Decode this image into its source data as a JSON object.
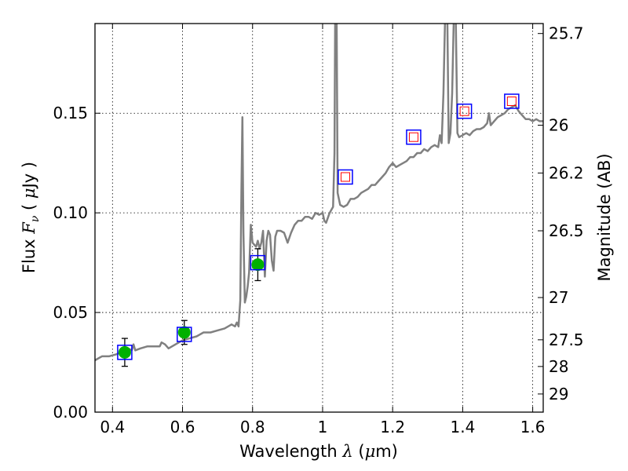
{
  "chart_data": {
    "type": "line",
    "title": "",
    "xlabel": "Wavelength  λ (μm)",
    "xlabel_parts": {
      "text": "Wavelength",
      "symbol": "λ",
      "unit_open": " (",
      "unit_mu": "μ",
      "unit_rest": "m)"
    },
    "ylabel": "Flux  F_ν  ( μJy )",
    "ylabel_parts": {
      "text": "Flux",
      "symbol": "F",
      "sub": "ν",
      "unit_open": "( ",
      "unit_mu": "μ",
      "unit_rest": "Jy )"
    },
    "y2label": "Magnitude (AB)",
    "xlim": [
      0.35,
      1.63
    ],
    "ylim": [
      0.0,
      0.195
    ],
    "grid": true,
    "x_ticks": [
      {
        "value": 0.4,
        "label": "0.4"
      },
      {
        "value": 0.6,
        "label": "0.6"
      },
      {
        "value": 0.8,
        "label": "0.8"
      },
      {
        "value": 1.0,
        "label": "1"
      },
      {
        "value": 1.2,
        "label": "1.2"
      },
      {
        "value": 1.4,
        "label": "1.4"
      },
      {
        "value": 1.6,
        "label": "1.6"
      }
    ],
    "y_ticks": [
      {
        "value": 0.0,
        "label": "0.00"
      },
      {
        "value": 0.05,
        "label": "0.05"
      },
      {
        "value": 0.1,
        "label": "0.10"
      },
      {
        "value": 0.15,
        "label": "0.15"
      }
    ],
    "mag_ticks": [
      {
        "label": "25.7",
        "flux": 0.19
      },
      {
        "label": "26",
        "flux": 0.144
      },
      {
        "label": "26.2",
        "flux": 0.12
      },
      {
        "label": "26.5",
        "flux": 0.091
      },
      {
        "label": "27",
        "flux": 0.0575
      },
      {
        "label": "27.5",
        "flux": 0.0363
      },
      {
        "label": "28",
        "flux": 0.0229
      },
      {
        "label": "29",
        "flux": 0.0091
      }
    ],
    "series": [
      {
        "kind": "model_spectrum",
        "color": "#808080",
        "points": [
          [
            0.35,
            0.026
          ],
          [
            0.37,
            0.028
          ],
          [
            0.39,
            0.028
          ],
          [
            0.41,
            0.029
          ],
          [
            0.425,
            0.03
          ],
          [
            0.435,
            0.031
          ],
          [
            0.445,
            0.032
          ],
          [
            0.455,
            0.031
          ],
          [
            0.46,
            0.034
          ],
          [
            0.465,
            0.031
          ],
          [
            0.48,
            0.032
          ],
          [
            0.5,
            0.033
          ],
          [
            0.52,
            0.033
          ],
          [
            0.535,
            0.033
          ],
          [
            0.54,
            0.035
          ],
          [
            0.55,
            0.034
          ],
          [
            0.56,
            0.032
          ],
          [
            0.58,
            0.034
          ],
          [
            0.6,
            0.036
          ],
          [
            0.62,
            0.037
          ],
          [
            0.64,
            0.038
          ],
          [
            0.66,
            0.04
          ],
          [
            0.68,
            0.04
          ],
          [
            0.7,
            0.041
          ],
          [
            0.72,
            0.042
          ],
          [
            0.74,
            0.044
          ],
          [
            0.75,
            0.043
          ],
          [
            0.755,
            0.045
          ],
          [
            0.76,
            0.043
          ],
          [
            0.765,
            0.056
          ],
          [
            0.768,
            0.11
          ],
          [
            0.771,
            0.148
          ],
          [
            0.774,
            0.09
          ],
          [
            0.778,
            0.055
          ],
          [
            0.782,
            0.058
          ],
          [
            0.786,
            0.063
          ],
          [
            0.79,
            0.07
          ],
          [
            0.795,
            0.094
          ],
          [
            0.8,
            0.085
          ],
          [
            0.81,
            0.083
          ],
          [
            0.815,
            0.086
          ],
          [
            0.82,
            0.082
          ],
          [
            0.825,
            0.085
          ],
          [
            0.83,
            0.091
          ],
          [
            0.835,
            0.068
          ],
          [
            0.84,
            0.086
          ],
          [
            0.845,
            0.091
          ],
          [
            0.85,
            0.089
          ],
          [
            0.855,
            0.076
          ],
          [
            0.86,
            0.071
          ],
          [
            0.865,
            0.088
          ],
          [
            0.87,
            0.091
          ],
          [
            0.88,
            0.091
          ],
          [
            0.89,
            0.09
          ],
          [
            0.9,
            0.085
          ],
          [
            0.91,
            0.09
          ],
          [
            0.92,
            0.094
          ],
          [
            0.93,
            0.096
          ],
          [
            0.94,
            0.096
          ],
          [
            0.95,
            0.098
          ],
          [
            0.96,
            0.098
          ],
          [
            0.97,
            0.097
          ],
          [
            0.98,
            0.1
          ],
          [
            0.99,
            0.099
          ],
          [
            1.0,
            0.1
          ],
          [
            1.005,
            0.096
          ],
          [
            1.01,
            0.095
          ],
          [
            1.02,
            0.1
          ],
          [
            1.03,
            0.103
          ],
          [
            1.034,
            0.13
          ],
          [
            1.036,
            0.2
          ],
          [
            1.04,
            0.2
          ],
          [
            1.043,
            0.11
          ],
          [
            1.05,
            0.104
          ],
          [
            1.06,
            0.103
          ],
          [
            1.07,
            0.104
          ],
          [
            1.08,
            0.107
          ],
          [
            1.09,
            0.107
          ],
          [
            1.1,
            0.108
          ],
          [
            1.11,
            0.11
          ],
          [
            1.12,
            0.111
          ],
          [
            1.13,
            0.112
          ],
          [
            1.14,
            0.114
          ],
          [
            1.15,
            0.114
          ],
          [
            1.16,
            0.116
          ],
          [
            1.17,
            0.118
          ],
          [
            1.18,
            0.12
          ],
          [
            1.19,
            0.123
          ],
          [
            1.2,
            0.125
          ],
          [
            1.21,
            0.123
          ],
          [
            1.22,
            0.124
          ],
          [
            1.23,
            0.125
          ],
          [
            1.24,
            0.126
          ],
          [
            1.25,
            0.128
          ],
          [
            1.26,
            0.128
          ],
          [
            1.27,
            0.13
          ],
          [
            1.28,
            0.13
          ],
          [
            1.29,
            0.132
          ],
          [
            1.3,
            0.131
          ],
          [
            1.31,
            0.133
          ],
          [
            1.32,
            0.134
          ],
          [
            1.33,
            0.133
          ],
          [
            1.335,
            0.139
          ],
          [
            1.34,
            0.135
          ],
          [
            1.345,
            0.16
          ],
          [
            1.35,
            0.2
          ],
          [
            1.356,
            0.2
          ],
          [
            1.36,
            0.135
          ],
          [
            1.365,
            0.14
          ],
          [
            1.37,
            0.16
          ],
          [
            1.375,
            0.2
          ],
          [
            1.38,
            0.2
          ],
          [
            1.385,
            0.14
          ],
          [
            1.39,
            0.138
          ],
          [
            1.4,
            0.139
          ],
          [
            1.41,
            0.14
          ],
          [
            1.42,
            0.139
          ],
          [
            1.43,
            0.141
          ],
          [
            1.44,
            0.142
          ],
          [
            1.45,
            0.142
          ],
          [
            1.46,
            0.143
          ],
          [
            1.47,
            0.145
          ],
          [
            1.475,
            0.15
          ],
          [
            1.48,
            0.144
          ],
          [
            1.49,
            0.146
          ],
          [
            1.5,
            0.148
          ],
          [
            1.51,
            0.149
          ],
          [
            1.52,
            0.15
          ],
          [
            1.53,
            0.152
          ],
          [
            1.54,
            0.153
          ],
          [
            1.55,
            0.154
          ],
          [
            1.56,
            0.151
          ],
          [
            1.57,
            0.149
          ],
          [
            1.58,
            0.147
          ],
          [
            1.59,
            0.147
          ],
          [
            1.6,
            0.146
          ],
          [
            1.61,
            0.147
          ],
          [
            1.62,
            0.146
          ],
          [
            1.63,
            0.146
          ]
        ]
      },
      {
        "kind": "model_photometry",
        "marker": "square",
        "color": "#0000ff",
        "x": [
          0.435,
          0.605,
          0.815,
          1.065,
          1.26,
          1.405,
          1.54
        ],
        "y": [
          0.03,
          0.039,
          0.075,
          0.118,
          0.138,
          0.151,
          0.156
        ]
      },
      {
        "kind": "detection",
        "marker": "circle",
        "color": "#00b000",
        "x": [
          0.435,
          0.605,
          0.815
        ],
        "y": [
          0.03,
          0.04,
          0.074
        ],
        "yerr": [
          0.007,
          0.006,
          0.008
        ]
      },
      {
        "kind": "upper_limit",
        "marker": "open-square",
        "color": "#ff0000",
        "x": [
          1.065,
          1.26,
          1.405,
          1.54
        ],
        "y": [
          0.118,
          0.138,
          0.151,
          0.156
        ]
      }
    ]
  }
}
